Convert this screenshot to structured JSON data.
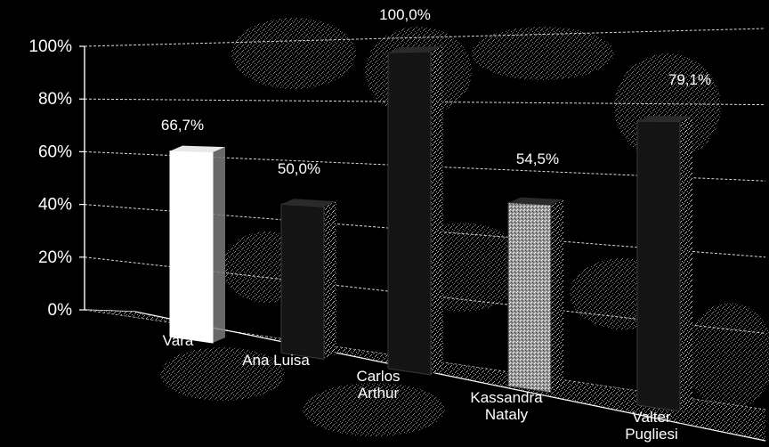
{
  "chart_data": {
    "type": "bar",
    "title": "",
    "xlabel": "",
    "ylabel": "",
    "ylim": [
      0,
      100
    ],
    "y_ticks": [
      "0%",
      "20%",
      "40%",
      "60%",
      "80%",
      "100%"
    ],
    "categories": [
      "Vara",
      "Ana Luisa",
      "Carlos Arthur",
      "Kassandra Nataly",
      "Valter Pugliesi"
    ],
    "category_lines": [
      [
        "Vara"
      ],
      [
        "Ana Luisa"
      ],
      [
        "Carlos",
        "Arthur"
      ],
      [
        "Kassandra",
        "Nataly"
      ],
      [
        "Valter",
        "Pugliesi"
      ]
    ],
    "values": [
      66.7,
      50.0,
      100.0,
      54.5,
      79.1
    ],
    "value_labels": [
      "66,7%",
      "50,0%",
      "100,0%",
      "54,5%",
      "79,1%"
    ],
    "bar_colors": [
      "#ffffff",
      "#141414",
      "#141414",
      "#bdbdbd",
      "#141414"
    ],
    "grid": true,
    "style": "3d-perspective"
  }
}
